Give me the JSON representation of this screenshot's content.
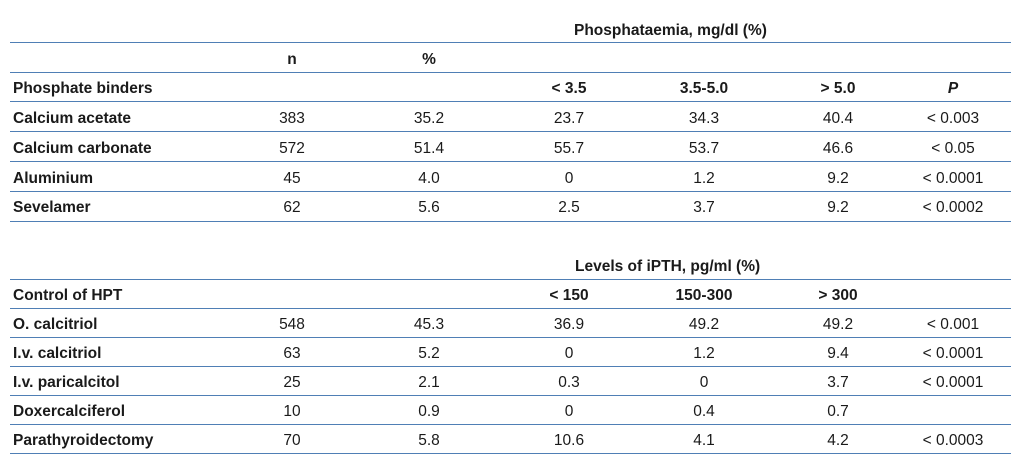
{
  "table1": {
    "group_header": "Phosphataemia, mg/dl (%)",
    "col_n": "n",
    "col_pct": "%",
    "row_header": "Phosphate binders",
    "ranges": [
      "< 3.5",
      "3.5-5.0",
      "> 5.0"
    ],
    "p_header": "P",
    "rows": [
      {
        "label": "Calcium acetate",
        "cells": [
          "383",
          "35.2",
          "23.7",
          "34.3",
          "40.4",
          "< 0.003"
        ]
      },
      {
        "label": "Calcium carbonate",
        "cells": [
          "572",
          "51.4",
          "55.7",
          "53.7",
          "46.6",
          "< 0.05"
        ]
      },
      {
        "label": "Aluminium",
        "cells": [
          "45",
          "4.0",
          "0",
          "1.2",
          "9.2",
          "< 0.0001"
        ]
      },
      {
        "label": "Sevelamer",
        "cells": [
          "62",
          "5.6",
          "2.5",
          "3.7",
          "9.2",
          "< 0.0002"
        ]
      }
    ]
  },
  "table2": {
    "group_header": "Levels of iPTH,  pg/ml  (%)",
    "row_header": "Control of HPT",
    "ranges": [
      "< 150",
      "150-300",
      "> 300"
    ],
    "rows": [
      {
        "label": "O. calcitriol",
        "cells": [
          "548",
          "45.3",
          "36.9",
          "49.2",
          "49.2",
          "< 0.001"
        ]
      },
      {
        "label": "I.v. calcitriol",
        "cells": [
          "63",
          "5.2",
          "0",
          "1.2",
          "9.4",
          "< 0.0001"
        ]
      },
      {
        "label": "I.v. paricalcitol",
        "cells": [
          "25",
          "2.1",
          "0.3",
          "0",
          "3.7",
          "< 0.0001"
        ]
      },
      {
        "label": "Doxercalciferol",
        "cells": [
          "10",
          "0.9",
          "0",
          "0.4",
          "0.7",
          ""
        ]
      },
      {
        "label": "Parathyroidectomy",
        "cells": [
          "70",
          "5.8",
          "10.6",
          "4.1",
          "4.2",
          "< 0.0003"
        ]
      }
    ]
  }
}
